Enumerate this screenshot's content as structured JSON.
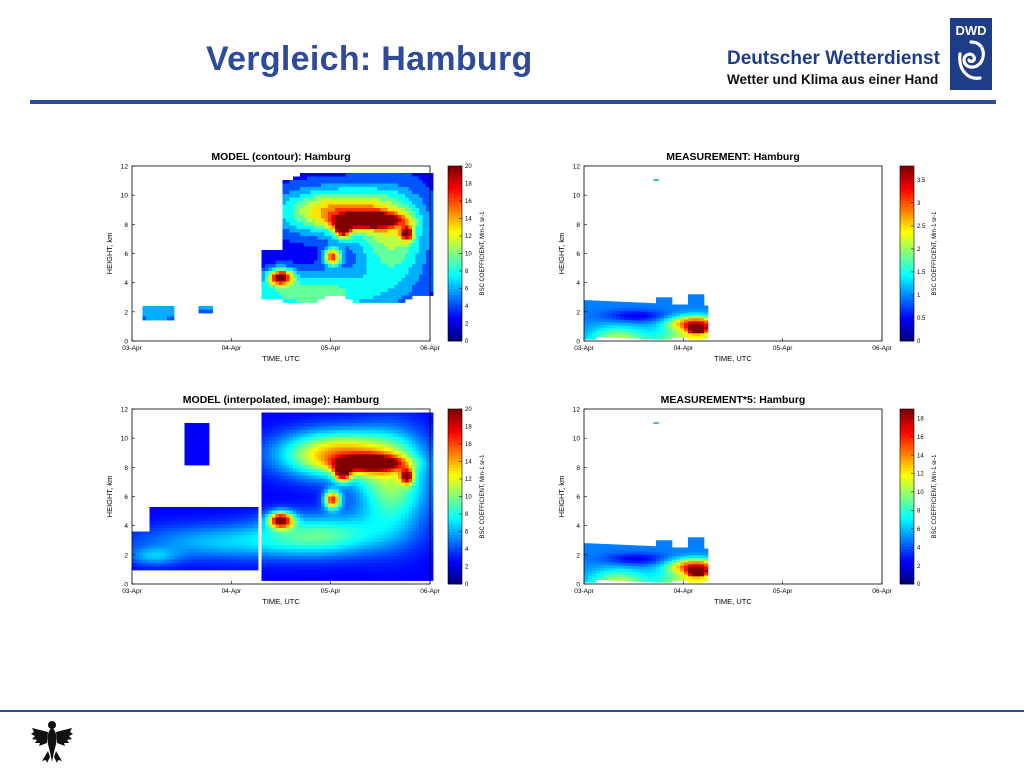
{
  "header": {
    "title": "Vergleich: Hamburg",
    "brand_name": "Deutscher Wetterdienst",
    "brand_tagline": "Wetter und Klima aus einer Hand",
    "logo_text": "DWD"
  },
  "colors": {
    "title_blue": "#2e4b9a",
    "rule_blue": "#2e4b9a",
    "jet_colormap": [
      "#00007f",
      "#0000ff",
      "#007fff",
      "#00ffff",
      "#7fff7f",
      "#ffff00",
      "#ff7f00",
      "#ff0000",
      "#7f0000"
    ]
  },
  "chart_data": [
    {
      "type": "heatmap",
      "title": "MODEL (contour): Hamburg",
      "xlabel": "TIME, UTC",
      "ylabel": "HEIGHT, km",
      "xticks": [
        "03-Apr",
        "04-Apr",
        "05-Apr",
        "06-Apr"
      ],
      "yticks": [
        0,
        2,
        4,
        6,
        8,
        10,
        12
      ],
      "ylim": [
        0,
        12
      ],
      "colorbar_label": "BSC COEFFICIENT, Mm-1 sr-1",
      "colorbar_ticks": [
        0,
        2,
        4,
        6,
        8,
        10,
        12,
        14,
        16,
        18,
        20
      ],
      "clim": [
        0,
        20
      ],
      "style": "contour"
    },
    {
      "type": "heatmap",
      "title": "MEASUREMENT: Hamburg",
      "xlabel": "TIME, UTC",
      "ylabel": "HEIGHT, km",
      "xticks": [
        "03-Apr",
        "04-Apr",
        "05-Apr",
        "06-Apr"
      ],
      "yticks": [
        0,
        2,
        4,
        6,
        8,
        10,
        12
      ],
      "ylim": [
        0,
        12
      ],
      "colorbar_label": "BSC COEFFICIENT, Mm-1 sr-1",
      "colorbar_ticks": [
        0,
        0.5,
        1,
        1.5,
        2,
        2.5,
        3,
        3.5
      ],
      "clim": [
        0,
        3.8
      ],
      "style": "measurement"
    },
    {
      "type": "heatmap",
      "title": "MODEL (interpolated, image): Hamburg",
      "xlabel": "TIME, UTC",
      "ylabel": "HEIGHT, km",
      "xticks": [
        "03-Apr",
        "04-Apr",
        "05-Apr",
        "06-Apr"
      ],
      "yticks": [
        0,
        2,
        4,
        6,
        8,
        10,
        12
      ],
      "ylim": [
        0,
        12
      ],
      "colorbar_label": "BSC COEFFICIENT, Mm-1 sr-1",
      "colorbar_ticks": [
        0,
        2,
        4,
        6,
        8,
        10,
        12,
        14,
        16,
        18,
        20
      ],
      "clim": [
        0,
        20
      ],
      "style": "image"
    },
    {
      "type": "heatmap",
      "title": "MEASUREMENT*5: Hamburg",
      "xlabel": "TIME, UTC",
      "ylabel": "HEIGHT, km",
      "xticks": [
        "03-Apr",
        "04-Apr",
        "05-Apr",
        "06-Apr"
      ],
      "yticks": [
        0,
        2,
        4,
        6,
        8,
        10,
        12
      ],
      "ylim": [
        0,
        12
      ],
      "colorbar_label": "BSC COEFFICIENT, Mm-1 sr-1",
      "colorbar_ticks": [
        0,
        2,
        4,
        6,
        8,
        10,
        12,
        14,
        16,
        18
      ],
      "clim": [
        0,
        19
      ],
      "style": "measurement"
    }
  ]
}
